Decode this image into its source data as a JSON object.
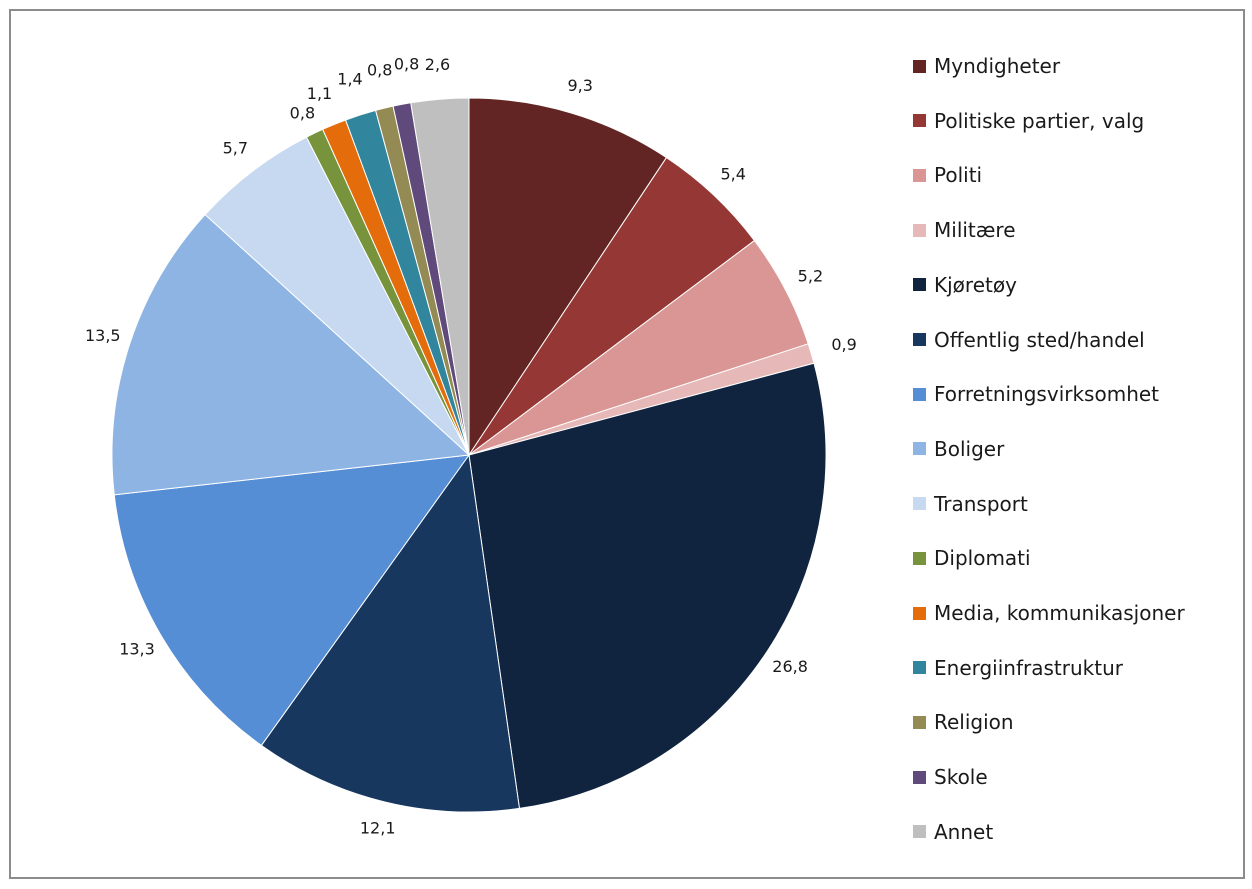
{
  "chart_data": {
    "type": "pie",
    "title": "",
    "legend_position": "right",
    "slices": [
      {
        "label": "Myndigheter",
        "value": 9.3,
        "display": "9,3",
        "color": "#632523"
      },
      {
        "label": "Politiske partier, valg",
        "value": 5.4,
        "display": "5,4",
        "color": "#953735"
      },
      {
        "label": "Politi",
        "value": 5.2,
        "display": "5,2",
        "color": "#D99694"
      },
      {
        "label": "Militære",
        "value": 0.9,
        "display": "0,9",
        "color": "#E6B9B8"
      },
      {
        "label": "Kjøretøy",
        "value": 26.8,
        "display": "26,8",
        "color": "#10243F"
      },
      {
        "label": "Offentlig sted/handel",
        "value": 12.1,
        "display": "12,1",
        "color": "#17375E"
      },
      {
        "label": "Forretningsvirksomhet",
        "value": 13.3,
        "display": "13,3",
        "color": "#558ED5"
      },
      {
        "label": "Boliger",
        "value": 13.5,
        "display": "13,5",
        "color": "#8EB4E3"
      },
      {
        "label": "Transport",
        "value": 5.7,
        "display": "5,7",
        "color": "#C6D9F1"
      },
      {
        "label": "Diplomati",
        "value": 0.8,
        "display": "0,8",
        "color": "#77933C"
      },
      {
        "label": "Media, kommunikasjoner",
        "value": 1.1,
        "display": "1,1",
        "color": "#E46C0A"
      },
      {
        "label": "Energiinfrastruktur",
        "value": 1.4,
        "display": "1,4",
        "color": "#31859C"
      },
      {
        "label": "Religion",
        "value": 0.8,
        "display": "0,8",
        "color": "#948A54"
      },
      {
        "label": "Skole",
        "value": 0.8,
        "display": "0,8",
        "color": "#604A7B"
      },
      {
        "label": "Annet",
        "value": 2.6,
        "display": "2,6",
        "color": "#BFBFBF"
      }
    ]
  }
}
